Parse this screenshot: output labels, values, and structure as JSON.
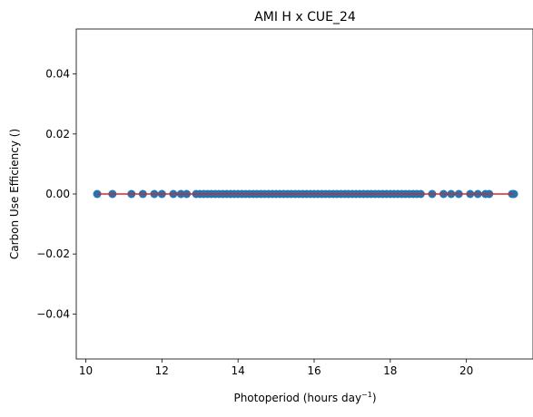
{
  "chart_data": {
    "type": "scatter",
    "title": "AMI H x CUE_24",
    "xlabel": "Photoperiod (hours day",
    "xlabel_sup": "−1",
    "xlabel_suffix": ")",
    "ylabel": "Carbon Use Efficiency ()",
    "xlim": [
      9.75,
      21.75
    ],
    "ylim": [
      -0.055,
      0.055
    ],
    "x_ticks": [
      {
        "value": 10,
        "label": "10"
      },
      {
        "value": 12,
        "label": "12"
      },
      {
        "value": 14,
        "label": "14"
      },
      {
        "value": 16,
        "label": "16"
      },
      {
        "value": 18,
        "label": "18"
      },
      {
        "value": 20,
        "label": "20"
      }
    ],
    "y_ticks": [
      {
        "value": 0.04,
        "label": "0.04"
      },
      {
        "value": 0.02,
        "label": "0.02"
      },
      {
        "value": 0.0,
        "label": "0.00"
      },
      {
        "value": -0.02,
        "label": "−0.02"
      },
      {
        "value": -0.04,
        "label": "−0.04"
      }
    ],
    "grid": false,
    "legend": "none",
    "point_color": "#1f77b4",
    "line_color": "#d62728",
    "points": {
      "x": [
        10.3,
        10.7,
        11.2,
        11.5,
        11.8,
        12.0,
        12.3,
        12.5,
        12.65,
        12.9,
        13.0,
        13.1,
        13.2,
        13.3,
        13.4,
        13.5,
        13.6,
        13.7,
        13.8,
        13.9,
        14.0,
        14.1,
        14.2,
        14.3,
        14.4,
        14.5,
        14.6,
        14.7,
        14.8,
        14.9,
        15.0,
        15.1,
        15.2,
        15.3,
        15.4,
        15.5,
        15.6,
        15.7,
        15.8,
        15.9,
        16.0,
        16.1,
        16.2,
        16.3,
        16.4,
        16.5,
        16.6,
        16.7,
        16.8,
        16.9,
        17.0,
        17.1,
        17.2,
        17.3,
        17.4,
        17.5,
        17.6,
        17.7,
        17.8,
        17.9,
        18.0,
        18.1,
        18.2,
        18.3,
        18.4,
        18.5,
        18.6,
        18.7,
        18.8,
        19.1,
        19.4,
        19.6,
        19.8,
        20.1,
        20.3,
        20.5,
        20.6,
        21.2,
        21.25
      ],
      "y": [
        0,
        0,
        0,
        0,
        0,
        0,
        0,
        0,
        0,
        0,
        0,
        0,
        0,
        0,
        0,
        0,
        0,
        0,
        0,
        0,
        0,
        0,
        0,
        0,
        0,
        0,
        0,
        0,
        0,
        0,
        0,
        0,
        0,
        0,
        0,
        0,
        0,
        0,
        0,
        0,
        0,
        0,
        0,
        0,
        0,
        0,
        0,
        0,
        0,
        0,
        0,
        0,
        0,
        0,
        0,
        0,
        0,
        0,
        0,
        0,
        0,
        0,
        0,
        0,
        0,
        0,
        0,
        0,
        0,
        0,
        0,
        0,
        0,
        0,
        0,
        0,
        0,
        0,
        0
      ]
    },
    "fit_line": {
      "x": [
        10.3,
        21.25
      ],
      "y": [
        0,
        0
      ]
    }
  }
}
